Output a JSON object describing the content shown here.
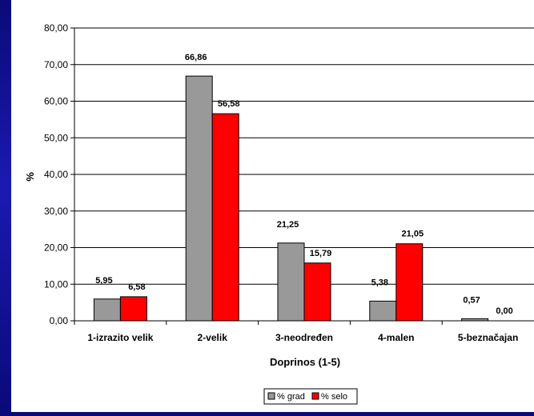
{
  "chart_data": {
    "type": "bar",
    "title": "",
    "xlabel": "Doprinos (1-5)",
    "ylabel": "%",
    "ylim": [
      0,
      80
    ],
    "yticks": [
      "0,00",
      "10,00",
      "20,00",
      "30,00",
      "40,00",
      "50,00",
      "60,00",
      "70,00",
      "80,00"
    ],
    "categories": [
      "1-izrazito velik",
      "2-velik",
      "3-neodređen",
      "4-malen",
      "5-beznačajan"
    ],
    "series": [
      {
        "name": "% grad",
        "color": "#999999",
        "values": [
          5.95,
          66.86,
          21.25,
          5.38,
          0.57
        ],
        "labels": [
          "5,95",
          "66,86",
          "21,25",
          "5,38",
          "0,57"
        ]
      },
      {
        "name": "% selo",
        "color": "#ff0000",
        "values": [
          6.58,
          56.58,
          15.79,
          21.05,
          0.0
        ],
        "labels": [
          "6,58",
          "56,58",
          "15,79",
          "21,05",
          "0,00"
        ]
      }
    ],
    "grid": true,
    "legend_position": "bottom"
  }
}
